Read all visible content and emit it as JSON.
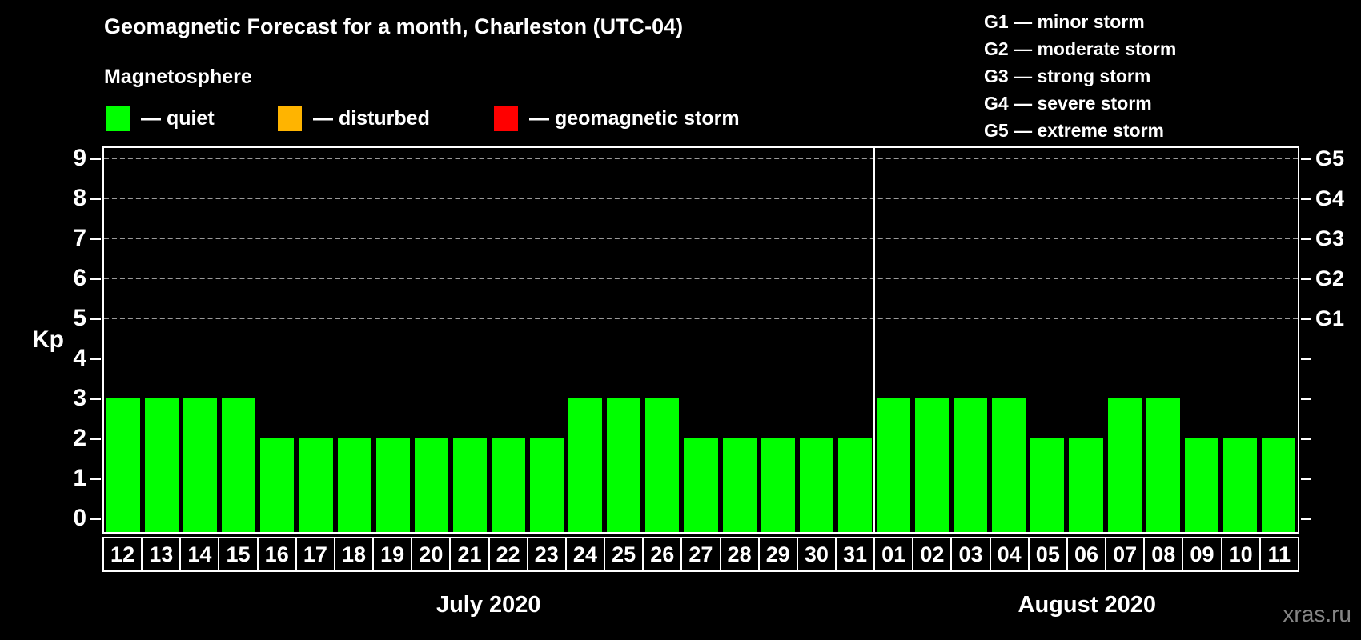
{
  "title": "Geomagnetic Forecast for a month, Charleston (UTC-04)",
  "subtitle": "Magnetosphere",
  "legend": {
    "items": [
      {
        "name": "quiet",
        "label": "— quiet",
        "color": "#00ff00"
      },
      {
        "name": "disturbed",
        "label": "— disturbed",
        "color": "#ffb400"
      },
      {
        "name": "geomagnetic-storm",
        "label": "— geomagnetic storm",
        "color": "#ff0000"
      }
    ]
  },
  "g_scale_legend": [
    "G1 — minor storm",
    "G2 — moderate storm",
    "G3 — strong storm",
    "G4 — severe storm",
    "G5 — extreme storm"
  ],
  "watermark": "xras.ru",
  "chart_data": {
    "type": "bar",
    "title": "Geomagnetic Forecast for a month, Charleston (UTC-04)",
    "ylabel": "Kp",
    "ylim": [
      0,
      9
    ],
    "yticks": [
      0,
      1,
      2,
      3,
      4,
      5,
      6,
      7,
      8,
      9
    ],
    "gridline_values": [
      5,
      6,
      7,
      8,
      9
    ],
    "grid": "dashed horizontal at G-storm levels only",
    "right_axis": [
      {
        "value": 5,
        "label": "G1"
      },
      {
        "value": 6,
        "label": "G2"
      },
      {
        "value": 7,
        "label": "G3"
      },
      {
        "value": 8,
        "label": "G4"
      },
      {
        "value": 9,
        "label": "G5"
      }
    ],
    "bar_color": "#00ff00",
    "background_color": "#000000",
    "months": [
      {
        "label": "July 2020",
        "days": [
          "12",
          "13",
          "14",
          "15",
          "16",
          "17",
          "18",
          "19",
          "20",
          "21",
          "22",
          "23",
          "24",
          "25",
          "26",
          "27",
          "28",
          "29",
          "30",
          "31"
        ],
        "values": [
          3,
          3,
          3,
          3,
          2,
          2,
          2,
          2,
          2,
          2,
          2,
          2,
          3,
          3,
          3,
          2,
          2,
          2,
          2,
          2
        ]
      },
      {
        "label": "August 2020",
        "days": [
          "01",
          "02",
          "03",
          "04",
          "05",
          "06",
          "07",
          "08",
          "09",
          "10",
          "11"
        ],
        "values": [
          3,
          3,
          3,
          3,
          2,
          2,
          3,
          3,
          2,
          2,
          2
        ]
      }
    ]
  }
}
